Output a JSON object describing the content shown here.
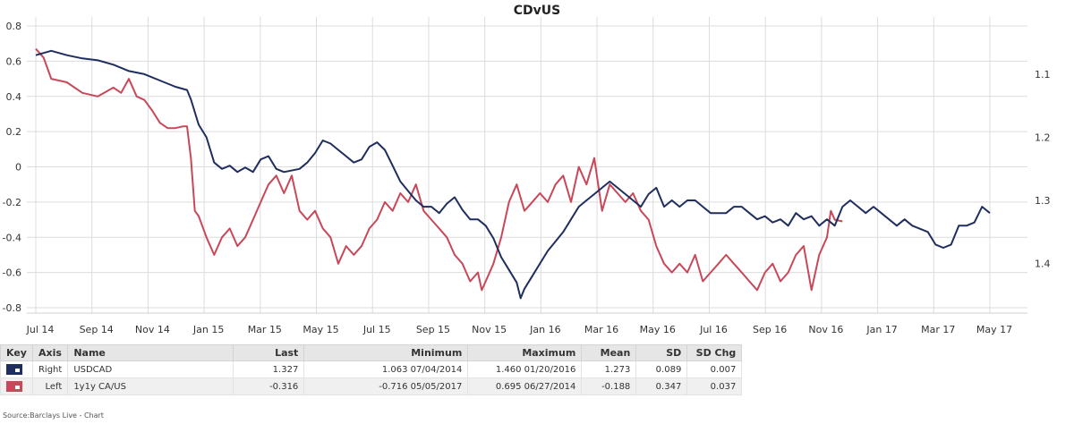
{
  "chart_data": {
    "type": "line",
    "title": "CDvUS",
    "x_labels": [
      "Jul 14",
      "Sep 14",
      "Nov 14",
      "Jan 15",
      "Mar 15",
      "May 15",
      "Jul 15",
      "Sep 15",
      "Nov 15",
      "Jan 16",
      "Mar 16",
      "May 16",
      "Jul 16",
      "Sep 16",
      "Nov 16",
      "Jan 17",
      "Mar 17",
      "May 17"
    ],
    "left_axis": {
      "ticks": [
        "0.8",
        "0.6",
        "0.4",
        "0.2",
        "0",
        "-0.2",
        "-0.4",
        "-0.6",
        "-0.8"
      ],
      "ylim": [
        -0.8,
        0.8
      ]
    },
    "right_axis": {
      "ticks": [
        "1.1",
        "1.2",
        "1.3",
        "1.4"
      ],
      "ylim": [
        1.47,
        1.0236
      ],
      "inverted": true
    },
    "series": [
      {
        "name": "USDCAD",
        "axis": "Right",
        "color": "#1f2e5e",
        "points": [
          [
            0,
            1.07
          ],
          [
            2,
            1.063
          ],
          [
            4,
            1.07
          ],
          [
            6,
            1.075
          ],
          [
            8,
            1.078
          ],
          [
            10,
            1.085
          ],
          [
            12,
            1.095
          ],
          [
            14,
            1.1
          ],
          [
            16,
            1.11
          ],
          [
            18,
            1.12
          ],
          [
            19.5,
            1.125
          ],
          [
            20,
            1.14
          ],
          [
            21,
            1.18
          ],
          [
            22,
            1.2
          ],
          [
            23,
            1.24
          ],
          [
            24,
            1.25
          ],
          [
            25,
            1.245
          ],
          [
            26,
            1.255
          ],
          [
            27,
            1.248
          ],
          [
            28,
            1.255
          ],
          [
            29,
            1.235
          ],
          [
            30,
            1.23
          ],
          [
            31,
            1.25
          ],
          [
            32,
            1.255
          ],
          [
            34,
            1.25
          ],
          [
            35,
            1.24
          ],
          [
            36,
            1.225
          ],
          [
            37,
            1.205
          ],
          [
            38,
            1.21
          ],
          [
            39,
            1.22
          ],
          [
            40,
            1.23
          ],
          [
            41,
            1.24
          ],
          [
            42,
            1.235
          ],
          [
            43,
            1.215
          ],
          [
            44,
            1.208
          ],
          [
            45,
            1.22
          ],
          [
            46,
            1.245
          ],
          [
            47,
            1.27
          ],
          [
            48,
            1.285
          ],
          [
            49,
            1.3
          ],
          [
            50,
            1.31
          ],
          [
            51,
            1.31
          ],
          [
            52,
            1.32
          ],
          [
            53,
            1.305
          ],
          [
            54,
            1.295
          ],
          [
            55,
            1.315
          ],
          [
            56,
            1.33
          ],
          [
            57,
            1.33
          ],
          [
            58,
            1.34
          ],
          [
            59,
            1.36
          ],
          [
            60,
            1.39
          ],
          [
            61,
            1.41
          ],
          [
            62,
            1.43
          ],
          [
            62.5,
            1.455
          ],
          [
            63,
            1.44
          ],
          [
            64,
            1.42
          ],
          [
            65,
            1.4
          ],
          [
            66,
            1.38
          ],
          [
            67,
            1.365
          ],
          [
            68,
            1.35
          ],
          [
            69,
            1.33
          ],
          [
            70,
            1.31
          ],
          [
            71,
            1.3
          ],
          [
            72,
            1.29
          ],
          [
            73,
            1.28
          ],
          [
            74,
            1.27
          ],
          [
            75,
            1.28
          ],
          [
            76,
            1.29
          ],
          [
            77,
            1.3
          ],
          [
            78,
            1.31
          ],
          [
            79,
            1.29
          ],
          [
            80,
            1.28
          ],
          [
            81,
            1.31
          ],
          [
            82,
            1.3
          ],
          [
            83,
            1.31
          ],
          [
            84,
            1.3
          ],
          [
            85,
            1.3
          ],
          [
            86,
            1.31
          ],
          [
            87,
            1.32
          ],
          [
            88,
            1.32
          ],
          [
            89,
            1.32
          ],
          [
            90,
            1.31
          ],
          [
            91,
            1.31
          ],
          [
            92,
            1.32
          ],
          [
            93,
            1.33
          ],
          [
            94,
            1.325
          ],
          [
            95,
            1.335
          ],
          [
            96,
            1.33
          ],
          [
            97,
            1.34
          ],
          [
            98,
            1.32
          ],
          [
            99,
            1.33
          ],
          [
            100,
            1.325
          ],
          [
            101,
            1.34
          ],
          [
            102,
            1.33
          ],
          [
            103,
            1.34
          ],
          [
            104,
            1.31
          ],
          [
            105,
            1.3
          ],
          [
            106,
            1.31
          ],
          [
            107,
            1.32
          ],
          [
            108,
            1.31
          ],
          [
            109,
            1.32
          ],
          [
            110,
            1.33
          ],
          [
            111,
            1.34
          ],
          [
            112,
            1.33
          ],
          [
            113,
            1.34
          ],
          [
            114,
            1.345
          ],
          [
            115,
            1.35
          ],
          [
            116,
            1.37
          ],
          [
            117,
            1.375
          ],
          [
            118,
            1.37
          ],
          [
            119,
            1.34
          ],
          [
            120,
            1.34
          ],
          [
            121,
            1.335
          ],
          [
            122,
            1.31
          ],
          [
            123,
            1.32
          ]
        ]
      },
      {
        "name": "1y1y CA/US",
        "axis": "Left",
        "color": "#c8485a",
        "points": [
          [
            0,
            0.67
          ],
          [
            1,
            0.62
          ],
          [
            2,
            0.5
          ],
          [
            4,
            0.48
          ],
          [
            6,
            0.42
          ],
          [
            8,
            0.4
          ],
          [
            10,
            0.45
          ],
          [
            11,
            0.42
          ],
          [
            12,
            0.5
          ],
          [
            13,
            0.4
          ],
          [
            14,
            0.38
          ],
          [
            15,
            0.32
          ],
          [
            16,
            0.25
          ],
          [
            17,
            0.22
          ],
          [
            18,
            0.22
          ],
          [
            19,
            0.23
          ],
          [
            19.5,
            0.23
          ],
          [
            20,
            0.05
          ],
          [
            20.5,
            -0.25
          ],
          [
            21,
            -0.28
          ],
          [
            22,
            -0.4
          ],
          [
            23,
            -0.5
          ],
          [
            24,
            -0.4
          ],
          [
            25,
            -0.35
          ],
          [
            26,
            -0.45
          ],
          [
            27,
            -0.4
          ],
          [
            28,
            -0.3
          ],
          [
            29,
            -0.2
          ],
          [
            30,
            -0.1
          ],
          [
            31,
            -0.05
          ],
          [
            32,
            -0.15
          ],
          [
            33,
            -0.05
          ],
          [
            34,
            -0.25
          ],
          [
            35,
            -0.3
          ],
          [
            36,
            -0.25
          ],
          [
            37,
            -0.35
          ],
          [
            38,
            -0.4
          ],
          [
            39,
            -0.55
          ],
          [
            40,
            -0.45
          ],
          [
            41,
            -0.5
          ],
          [
            42,
            -0.45
          ],
          [
            43,
            -0.35
          ],
          [
            44,
            -0.3
          ],
          [
            45,
            -0.2
          ],
          [
            46,
            -0.25
          ],
          [
            47,
            -0.15
          ],
          [
            48,
            -0.2
          ],
          [
            49,
            -0.1
          ],
          [
            50,
            -0.25
          ],
          [
            51,
            -0.3
          ],
          [
            52,
            -0.35
          ],
          [
            53,
            -0.4
          ],
          [
            54,
            -0.5
          ],
          [
            55,
            -0.55
          ],
          [
            56,
            -0.65
          ],
          [
            57,
            -0.6
          ],
          [
            57.5,
            -0.7
          ],
          [
            58,
            -0.65
          ],
          [
            59,
            -0.55
          ],
          [
            60,
            -0.4
          ],
          [
            61,
            -0.2
          ],
          [
            62,
            -0.1
          ],
          [
            63,
            -0.25
          ],
          [
            64,
            -0.2
          ],
          [
            65,
            -0.15
          ],
          [
            66,
            -0.2
          ],
          [
            67,
            -0.1
          ],
          [
            68,
            -0.05
          ],
          [
            69,
            -0.2
          ],
          [
            70,
            0.0
          ],
          [
            71,
            -0.1
          ],
          [
            72,
            0.05
          ],
          [
            73,
            -0.25
          ],
          [
            74,
            -0.1
          ],
          [
            75,
            -0.15
          ],
          [
            76,
            -0.2
          ],
          [
            77,
            -0.15
          ],
          [
            78,
            -0.25
          ],
          [
            79,
            -0.3
          ],
          [
            80,
            -0.45
          ],
          [
            81,
            -0.55
          ],
          [
            82,
            -0.6
          ],
          [
            83,
            -0.55
          ],
          [
            84,
            -0.6
          ],
          [
            85,
            -0.5
          ],
          [
            86,
            -0.65
          ],
          [
            87,
            -0.6
          ],
          [
            88,
            -0.55
          ],
          [
            89,
            -0.5
          ],
          [
            90,
            -0.55
          ],
          [
            91,
            -0.6
          ],
          [
            92,
            -0.65
          ],
          [
            93,
            -0.7
          ],
          [
            94,
            -0.6
          ],
          [
            95,
            -0.55
          ],
          [
            96,
            -0.65
          ],
          [
            97,
            -0.6
          ],
          [
            98,
            -0.5
          ],
          [
            99,
            -0.45
          ],
          [
            100,
            -0.7
          ],
          [
            101,
            -0.5
          ],
          [
            102,
            -0.4
          ],
          [
            102.5,
            -0.25
          ],
          [
            103,
            -0.3
          ],
          [
            104,
            -0.31
          ]
        ]
      }
    ]
  },
  "table": {
    "headers": [
      "Key",
      "Axis",
      "Name",
      "Last",
      "Minimum",
      "Maximum",
      "Mean",
      "SD",
      "SD Chg"
    ],
    "rows": [
      {
        "key_color": "#1f2e5e",
        "axis": "Right",
        "name": "USDCAD",
        "last": "1.327",
        "minimum": "1.063 07/04/2014",
        "maximum": "1.460 01/20/2016",
        "mean": "1.273",
        "sd": "0.089",
        "sd_chg": "0.007"
      },
      {
        "key_color": "#c8485a",
        "axis": "Left",
        "name": "1y1y CA/US",
        "last": "-0.316",
        "minimum": "-0.716 05/05/2017",
        "maximum": "0.695 06/27/2014",
        "mean": "-0.188",
        "sd": "0.347",
        "sd_chg": "0.037"
      }
    ]
  },
  "source": "Source:Barclays Live - Chart"
}
